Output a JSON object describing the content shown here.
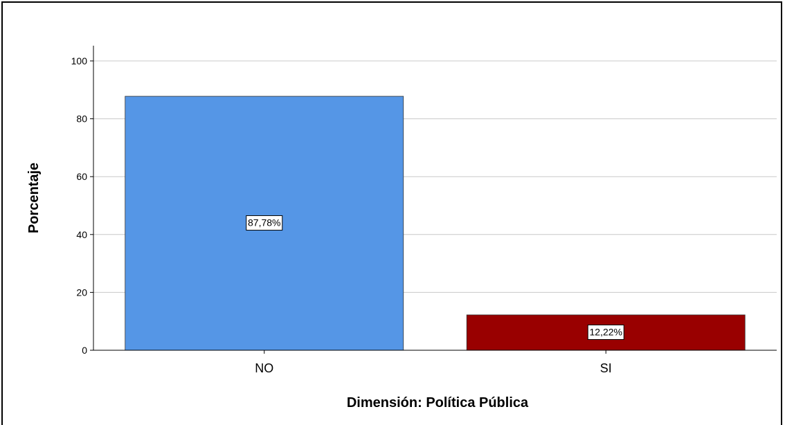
{
  "chart_data": {
    "type": "bar",
    "categories": [
      "NO",
      "SI"
    ],
    "values": [
      87.78,
      12.22
    ],
    "data_labels": [
      "87,78%",
      "12,22%"
    ],
    "colors": [
      "#5596e6",
      "#990000"
    ],
    "title": "",
    "xlabel": "Dimensión: Política Pública",
    "ylabel": "Porcentaje",
    "ylim": [
      0,
      100
    ],
    "yticks": [
      0,
      20,
      40,
      60,
      80,
      100
    ],
    "grid": true,
    "legend": "none"
  }
}
